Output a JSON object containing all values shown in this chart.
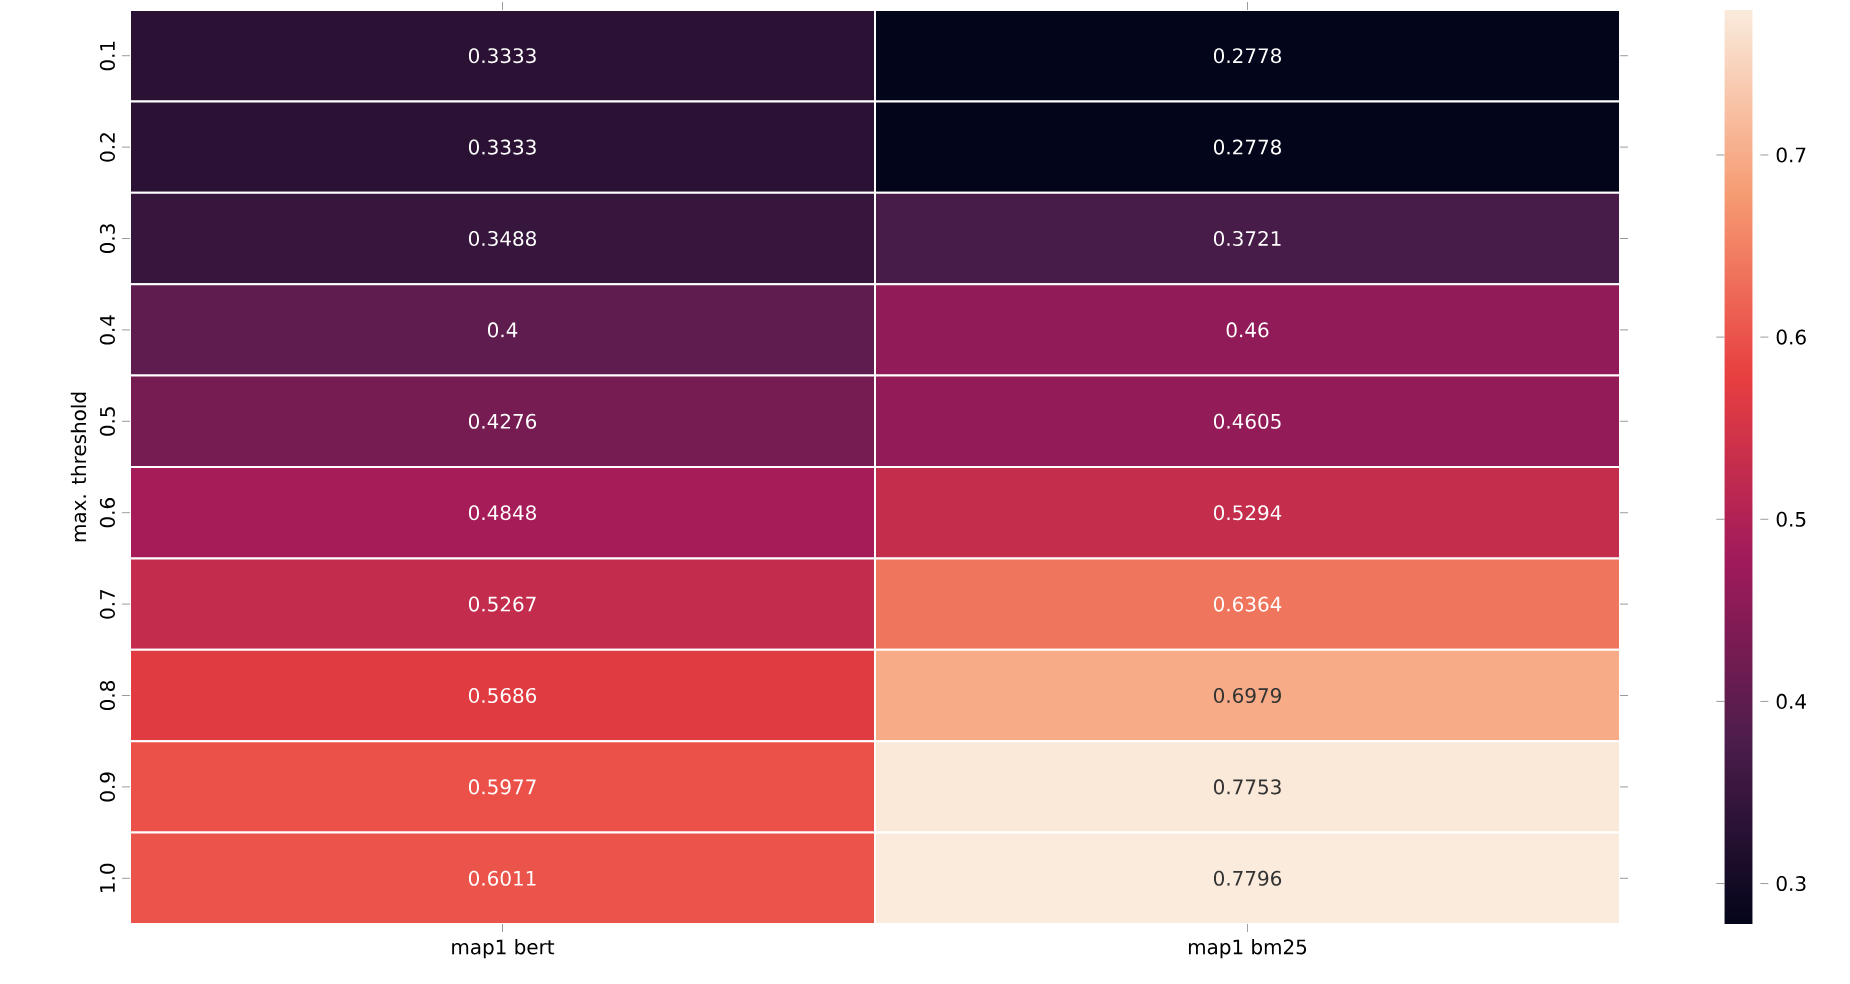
{
  "chart_data": {
    "type": "heatmap",
    "ylabel": "max. threshold",
    "categories": [
      "map1 bert",
      "map1 bm25"
    ],
    "y_categories": [
      "0.1",
      "0.2",
      "0.3",
      "0.4",
      "0.5",
      "0.6",
      "0.7",
      "0.8",
      "0.9",
      "1.0"
    ],
    "cells": [
      [
        0.3333,
        0.2778
      ],
      [
        0.3333,
        0.2778
      ],
      [
        0.3488,
        0.3721
      ],
      [
        0.4,
        0.46
      ],
      [
        0.4276,
        0.4605
      ],
      [
        0.4848,
        0.5294
      ],
      [
        0.5267,
        0.6364
      ],
      [
        0.5686,
        0.6979
      ],
      [
        0.5977,
        0.7753
      ],
      [
        0.6011,
        0.7796
      ]
    ],
    "data_labels": true,
    "clim": [
      0.2778,
      0.7796
    ],
    "cticks": [
      0.3,
      0.4,
      0.5,
      0.6,
      0.7
    ]
  }
}
